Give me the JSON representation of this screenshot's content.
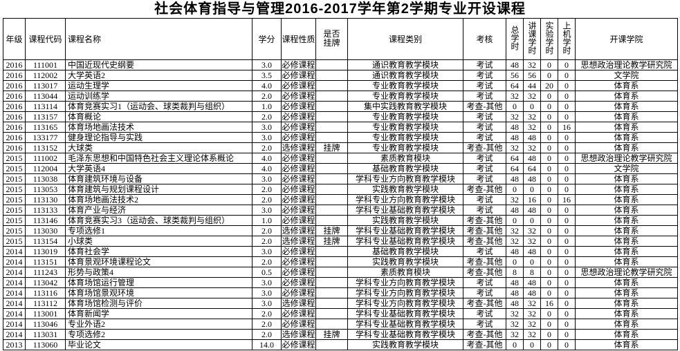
{
  "title": "社会体育指导与管理2016-2017学年第2学期专业开设课程",
  "table": {
    "columns": [
      {
        "key": "grade",
        "label": "年级"
      },
      {
        "key": "course_code",
        "label": "课程代码"
      },
      {
        "key": "course_name",
        "label": "课程名称"
      },
      {
        "key": "credits",
        "label": "学分"
      },
      {
        "key": "course_nature",
        "label": "课程性质"
      },
      {
        "key": "listed",
        "label": "是否挂牌"
      },
      {
        "key": "course_category",
        "label": "课程类别"
      },
      {
        "key": "assessment",
        "label": "考核"
      },
      {
        "key": "total_hours",
        "label": "总学时",
        "vertical": true
      },
      {
        "key": "lecture_hours",
        "label": "讲课学时",
        "vertical": true
      },
      {
        "key": "experiment_hours",
        "label": "实验学时",
        "vertical": true
      },
      {
        "key": "computer_hours",
        "label": "上机学时",
        "vertical": true
      },
      {
        "key": "college",
        "label": "开课学院"
      }
    ],
    "rows": [
      [
        "2016",
        "111001",
        "中国近现代史纲要",
        "3.0",
        "必修课程",
        "",
        "通识教育教学模块",
        "考试",
        "48",
        "32",
        "0",
        "0",
        "思想政治理论教学研究院"
      ],
      [
        "2016",
        "112002",
        "大学英语2",
        "3.5",
        "必修课程",
        "",
        "通识教育教学模块",
        "考试",
        "56",
        "56",
        "0",
        "0",
        "文学院"
      ],
      [
        "2016",
        "113017",
        "运动生理学",
        "4.0",
        "必修课程",
        "",
        "专业教育教学模块",
        "考试",
        "64",
        "44",
        "20",
        "0",
        "体育系"
      ],
      [
        "2016",
        "113044",
        "运动训练学",
        "2.0",
        "必修课程",
        "",
        "专业教育教学模块",
        "考试",
        "32",
        "32",
        "0",
        "0",
        "体育系"
      ],
      [
        "2016",
        "113114",
        "体育竞赛实习1（运动会、球类裁判与组织）",
        "1.0",
        "必修课程",
        "",
        "集中实践教育教学模块",
        "考查-其他",
        "0",
        "0",
        "0",
        "0",
        "体育系"
      ],
      [
        "2016",
        "113157",
        "体育概论",
        "2.0",
        "必修课程",
        "",
        "专业教育教学模块",
        "考试",
        "32",
        "32",
        "0",
        "0",
        "体育系"
      ],
      [
        "2016",
        "113165",
        "体育场地画法技术",
        "3.0",
        "必修课程",
        "",
        "专业教育教学模块",
        "考试",
        "48",
        "32",
        "0",
        "16",
        "体育系"
      ],
      [
        "2016",
        "133177",
        "健身理论指导与实践",
        "3.0",
        "必修课程",
        "",
        "专业教育教学模块",
        "考试",
        "48",
        "48",
        "0",
        "0",
        "体育系"
      ],
      [
        "2016",
        "113152",
        "大球类",
        "2.0",
        "选修课程",
        "挂牌",
        "专业教育教学模块",
        "考查-其他",
        "32",
        "32",
        "0",
        "0",
        "体育系"
      ],
      [
        "2015",
        "111002",
        "毛泽东思想和中国特色社会主义理论体系概论",
        "4.0",
        "必修课程",
        "",
        "素质教育模块",
        "考试",
        "64",
        "48",
        "0",
        "0",
        "思想政治理论教学研究院"
      ],
      [
        "2015",
        "112004",
        "大学英语4",
        "4.0",
        "必修课程",
        "",
        "基础教育教学模块",
        "考试",
        "64",
        "64",
        "0",
        "0",
        "文学院"
      ],
      [
        "2015",
        "113038",
        "体育建筑环境与设备",
        "3.0",
        "必修课程",
        "",
        "学科专业方向教育教学模块",
        "考试",
        "48",
        "48",
        "0",
        "0",
        "体育系"
      ],
      [
        "2015",
        "113053",
        "体育建筑与规划课程设计",
        "2.0",
        "必修课程",
        "",
        "实践教育教学模块",
        "考查-其他",
        "0",
        "0",
        "0",
        "0",
        "体育系"
      ],
      [
        "2015",
        "113130",
        "体育场地画法技术2",
        "2.0",
        "必修课程",
        "",
        "学科专业方向教育教学模块",
        "考试",
        "32",
        "16",
        "0",
        "16",
        "体育系"
      ],
      [
        "2015",
        "113133",
        "体育产业与经济",
        "3.0",
        "必修课程",
        "",
        "学科专业基础教育教学模块",
        "考试",
        "48",
        "48",
        "0",
        "0",
        "体育系"
      ],
      [
        "2015",
        "113146",
        "体育竞赛实习3（运动会、球类裁判与组织）",
        "1.0",
        "必修课程",
        "",
        "实践教育教学模块",
        "考查-其他",
        "0",
        "0",
        "0",
        "0",
        "体育系"
      ],
      [
        "2015",
        "113030",
        "专项选修1",
        "2.0",
        "选修课程",
        "挂牌",
        "学科专业基础教育教学模块",
        "考查-其他",
        "32",
        "32",
        "0",
        "0",
        "体育系"
      ],
      [
        "2015",
        "113154",
        "小球类",
        "2.0",
        "选修课程",
        "挂牌",
        "学科专业基础教育教学模块",
        "考查-其他",
        "32",
        "32",
        "0",
        "0",
        "体育系"
      ],
      [
        "2014",
        "113019",
        "体育社会学",
        "3.0",
        "必修课程",
        "",
        "基础教育教学模块",
        "考试",
        "48",
        "48",
        "0",
        "0",
        "体育系"
      ],
      [
        "2014",
        "113151",
        "体育景观环境课程论文",
        "2.0",
        "必修课程",
        "",
        "实践教育教学模块",
        "考查-其他",
        "0",
        "0",
        "0",
        "0",
        "体育系"
      ],
      [
        "2014",
        "111243",
        "形势与政策4",
        "0.5",
        "必修课程",
        "",
        "素质教育模块",
        "考查-其他",
        "8",
        "8",
        "0",
        "0",
        "思想政治理论教学研究院"
      ],
      [
        "2014",
        "113042",
        "体育场馆运行管理",
        "3.0",
        "必修课程",
        "",
        "学科专业方向教育教学模块",
        "考试",
        "48",
        "48",
        "0",
        "0",
        "体育系"
      ],
      [
        "2014",
        "113116",
        "体育场馆景观环境",
        "3.0",
        "必修课程",
        "",
        "学科专业方向教育教学模块",
        "考试",
        "48",
        "48",
        "0",
        "0",
        "体育系"
      ],
      [
        "2014",
        "113112",
        "体育场馆检测与评价",
        "3.0",
        "选修课程",
        "",
        "学科专业方向教育教学模块",
        "考查-其他",
        "48",
        "32",
        "16",
        "0",
        "体育系"
      ],
      [
        "2014",
        "113001",
        "体育新闻学",
        "2.0",
        "必修课程",
        "",
        "学科专业基础教育教学模块",
        "考试",
        "32",
        "32",
        "0",
        "0",
        "体育系"
      ],
      [
        "2014",
        "113046",
        "专业外语2",
        "2.0",
        "必修课程",
        "",
        "学科专业基础教育教学模块",
        "考试",
        "32",
        "32",
        "0",
        "0",
        "体育系"
      ],
      [
        "2014",
        "113031",
        "专项选修2",
        "2.0",
        "选修课程",
        "挂牌",
        "学科专业基础教育教学模块",
        "考查-其他",
        "32",
        "32",
        "0",
        "0",
        "体育系"
      ],
      [
        "2013",
        "113060",
        "毕业论文",
        "14.0",
        "必修课程",
        "",
        "实践教育教学模块",
        "考查-其他",
        "0",
        "0",
        "0",
        "0",
        "体育系"
      ]
    ]
  }
}
